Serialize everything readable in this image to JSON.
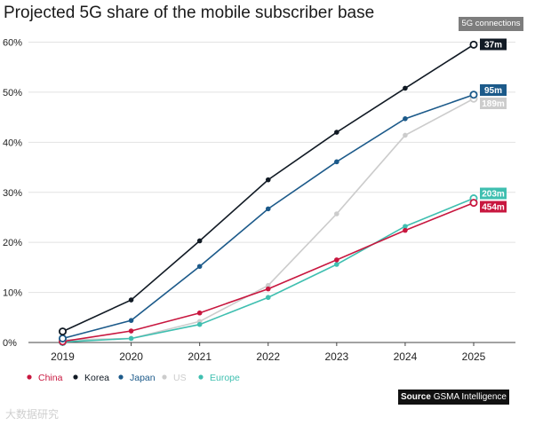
{
  "chart_data": {
    "type": "line",
    "title": "Projected 5G share of the mobile subscriber base",
    "xlabel": "",
    "ylabel": "",
    "x": [
      "2019",
      "2020",
      "2021",
      "2022",
      "2023",
      "2024",
      "2025"
    ],
    "ylim": [
      0,
      60
    ],
    "yticks": [
      0,
      10,
      20,
      30,
      40,
      50,
      60
    ],
    "ytick_labels": [
      "0%",
      "10%",
      "20%",
      "30%",
      "40%",
      "50%",
      "60%"
    ],
    "grid": "horizontal",
    "legend_position": "bottom-left",
    "end_labels_header": "5G connections",
    "series": [
      {
        "name": "Korea",
        "color": "#111a24",
        "values": [
          2.2,
          8.5,
          20.3,
          32.5,
          42.0,
          50.8,
          59.5
        ],
        "end_label": "37m"
      },
      {
        "name": "Japan",
        "color": "#1c5a8a",
        "values": [
          0.8,
          4.4,
          15.2,
          26.7,
          36.1,
          44.7,
          49.5
        ],
        "end_label": "95m"
      },
      {
        "name": "US",
        "color": "#cccccc",
        "values": [
          0.5,
          0.8,
          4.2,
          11.4,
          25.7,
          41.4,
          48.7
        ],
        "end_label": "189m"
      },
      {
        "name": "Europe",
        "color": "#3fbfb0",
        "values": [
          0.1,
          0.8,
          3.6,
          9.0,
          15.6,
          23.2,
          28.8
        ],
        "end_label": "203m"
      },
      {
        "name": "China",
        "color": "#c8173f",
        "values": [
          0.2,
          2.3,
          5.9,
          10.7,
          16.5,
          22.4,
          27.9
        ],
        "end_label": "454m"
      }
    ],
    "legend_order": [
      "China",
      "Korea",
      "Japan",
      "US",
      "Europe"
    ]
  },
  "source": {
    "prefix": "Source",
    "name": "GSMA Intelligence"
  },
  "watermark": "大数据研究"
}
